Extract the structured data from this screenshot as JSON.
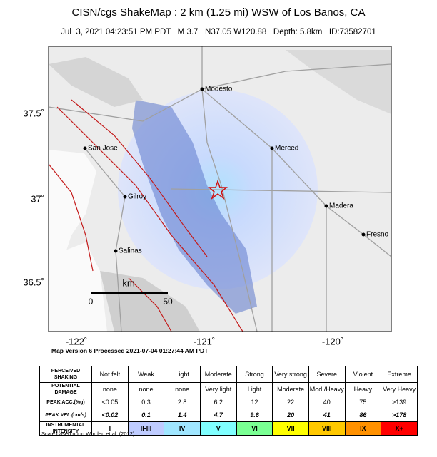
{
  "header": {
    "title": "CISN/cgs ShakeMap : 2 km (1.25 mi) WSW of Los Banos, CA",
    "subtitle": "Jul  3, 2021 04:23:51 PM PDT   M 3.7   N37.05 W120.88   Depth: 5.8km   ID:73582701"
  },
  "map": {
    "cities": [
      {
        "label": "Modesto"
      },
      {
        "label": "Merced"
      },
      {
        "label": "San Jose"
      },
      {
        "label": "Gilroy"
      },
      {
        "label": "Madera"
      },
      {
        "label": "Fresno"
      },
      {
        "label": "Salinas"
      }
    ],
    "lat_labels": [
      "37.5˚",
      "37˚",
      "36.5˚"
    ],
    "lon_labels": [
      "-122˚",
      "-121˚",
      "-120˚"
    ],
    "scale": {
      "unit": "km",
      "start": "0",
      "end": "50"
    }
  },
  "version": "Map Version 6 Processed 2021-07-04 01:27:44 AM PDT",
  "table": {
    "rows": [
      [
        "PERCEIVED SHAKING",
        "Not felt",
        "Weak",
        "Light",
        "Moderate",
        "Strong",
        "Very strong",
        "Severe",
        "Violent",
        "Extreme"
      ],
      [
        "POTENTIAL DAMAGE",
        "none",
        "none",
        "none",
        "Very light",
        "Light",
        "Moderate",
        "Mod./Heavy",
        "Heavy",
        "Very Heavy"
      ],
      [
        "PEAK ACC.(%g)",
        "<0.05",
        "0.3",
        "2.8",
        "6.2",
        "12",
        "22",
        "40",
        "75",
        ">139"
      ],
      [
        "PEAK VEL.(cm/s)",
        "<0.02",
        "0.1",
        "1.4",
        "4.7",
        "9.6",
        "20",
        "41",
        "86",
        ">178"
      ],
      [
        "INSTRUMENTAL INTENSITY",
        "I",
        "II-III",
        "IV",
        "V",
        "VI",
        "VII",
        "VIII",
        "IX",
        "X+"
      ]
    ],
    "intensity_colors": [
      "#ffffff",
      "#bfccff",
      "#a0e6ff",
      "#80ffff",
      "#7aff93",
      "#ffff00",
      "#ffc800",
      "#ff9100",
      "#ff0000"
    ]
  },
  "footnote": "Scale based upon Worden et al. (2012)"
}
